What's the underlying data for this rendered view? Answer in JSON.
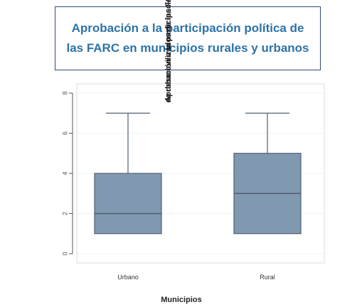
{
  "title": {
    "line1": "Aprobación a la participación política de",
    "line2": "las FARC en municipios rurales y urbanos"
  },
  "colors": {
    "title_text": "#2d73a8",
    "title_border": "#2e4a7a",
    "box_fill": "#8198b1",
    "box_stroke": "#4f5f73",
    "plot_border": "#d6dee6",
    "grid": "#eef2f6"
  },
  "chart_data": {
    "type": "box",
    "title": "Aprobación a la participación política de las FARC en municipios rurales y urbanos",
    "xlabel": "Municipios",
    "ylabel_lines": [
      "Aprobación a la participación política",
      "de desmovilizados de las FARC"
    ],
    "ylim": [
      0,
      8
    ],
    "yticks": [
      "0",
      "2",
      "4",
      "6",
      "8"
    ],
    "categories": [
      "Urbano",
      "Rural"
    ],
    "boxes": [
      {
        "category": "Urbano",
        "min": 1,
        "q1": 1,
        "median": 2,
        "q3": 4,
        "max": 7
      },
      {
        "category": "Rural",
        "min": 1,
        "q1": 1,
        "median": 3,
        "q3": 5,
        "max": 7
      }
    ],
    "grid": true
  }
}
